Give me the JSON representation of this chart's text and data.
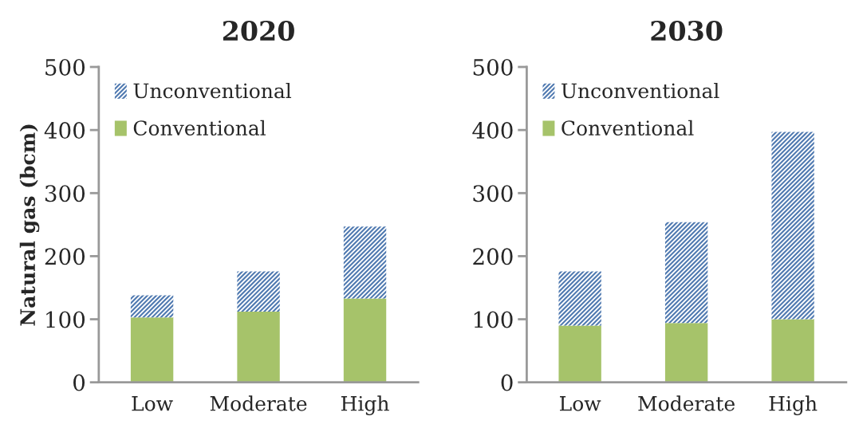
{
  "chart_data": [
    {
      "type": "bar",
      "title": "2020",
      "ylabel": "Natural gas (bcm)",
      "categories": [
        "Low",
        "Moderate",
        "High"
      ],
      "stacked": true,
      "series": [
        {
          "name": "Conventional",
          "color": "#a6c36a",
          "values": [
            103,
            112,
            133
          ]
        },
        {
          "name": "Unconventional",
          "color": "#4f79b0",
          "values": [
            35,
            64,
            114
          ]
        }
      ],
      "ylim": [
        0,
        500
      ],
      "yticks": [
        0,
        100,
        200,
        300,
        400,
        500
      ],
      "grid": false,
      "legend": "top left"
    },
    {
      "type": "bar",
      "title": "2030",
      "categories": [
        "Low",
        "Moderate",
        "High"
      ],
      "stacked": true,
      "series": [
        {
          "name": "Conventional",
          "color": "#a6c36a",
          "values": [
            90,
            94,
            100
          ]
        },
        {
          "name": "Unconventional",
          "color": "#4f79b0",
          "values": [
            86,
            160,
            297
          ]
        }
      ],
      "ylim": [
        0,
        500
      ],
      "yticks": [
        0,
        100,
        200,
        300,
        400,
        500
      ],
      "grid": false,
      "legend": "top left"
    }
  ]
}
